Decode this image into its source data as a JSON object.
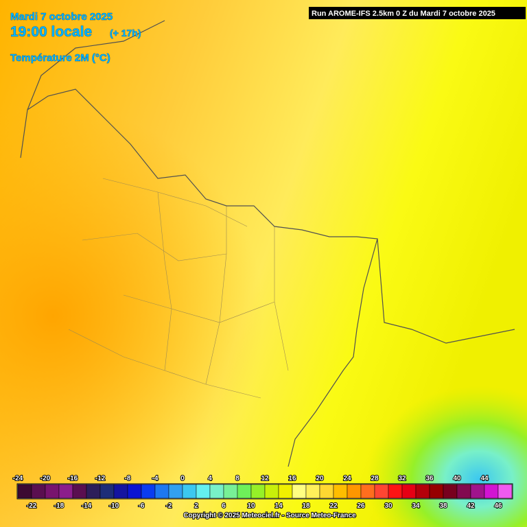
{
  "header": {
    "date": "Mardi 7 octobre 2025",
    "time": "19:00 locale",
    "offset": "(+ 17h)",
    "parameter": "Température 2M (°C)",
    "run": "Run AROME-IFS 2.5km 0 Z du Mardi 7 octobre 2025"
  },
  "legend": {
    "values": [
      -24,
      -22,
      -20,
      -18,
      -16,
      -14,
      -12,
      -10,
      -8,
      -6,
      -4,
      -2,
      0,
      2,
      4,
      6,
      8,
      10,
      12,
      14,
      16,
      18,
      20,
      22,
      24,
      26,
      28,
      30,
      32,
      34,
      36,
      38,
      40,
      42,
      44,
      46
    ],
    "colors": [
      "#3c0a32",
      "#5a0f50",
      "#78146e",
      "#8c1e8c",
      "#5a0f50",
      "#2d1e5a",
      "#1e2d78",
      "#1414a0",
      "#0a14d2",
      "#0a3cf0",
      "#1e78f0",
      "#32a0f0",
      "#3cc8f0",
      "#64f0f0",
      "#78f0c8",
      "#78f096",
      "#6ef05a",
      "#96f028",
      "#c8f00a",
      "#f0f000",
      "#ffff82",
      "#fff05a",
      "#ffd732",
      "#ffbe00",
      "#ff9600",
      "#ff6e1e",
      "#ff4632",
      "#ff1414",
      "#e60014",
      "#b4000a",
      "#960000",
      "#78001e",
      "#820a50",
      "#a0148c",
      "#d214d2",
      "#f05af0"
    ]
  },
  "copyright": "Copyright © 2025 Meteociel.fr - Source Meteo-France"
}
